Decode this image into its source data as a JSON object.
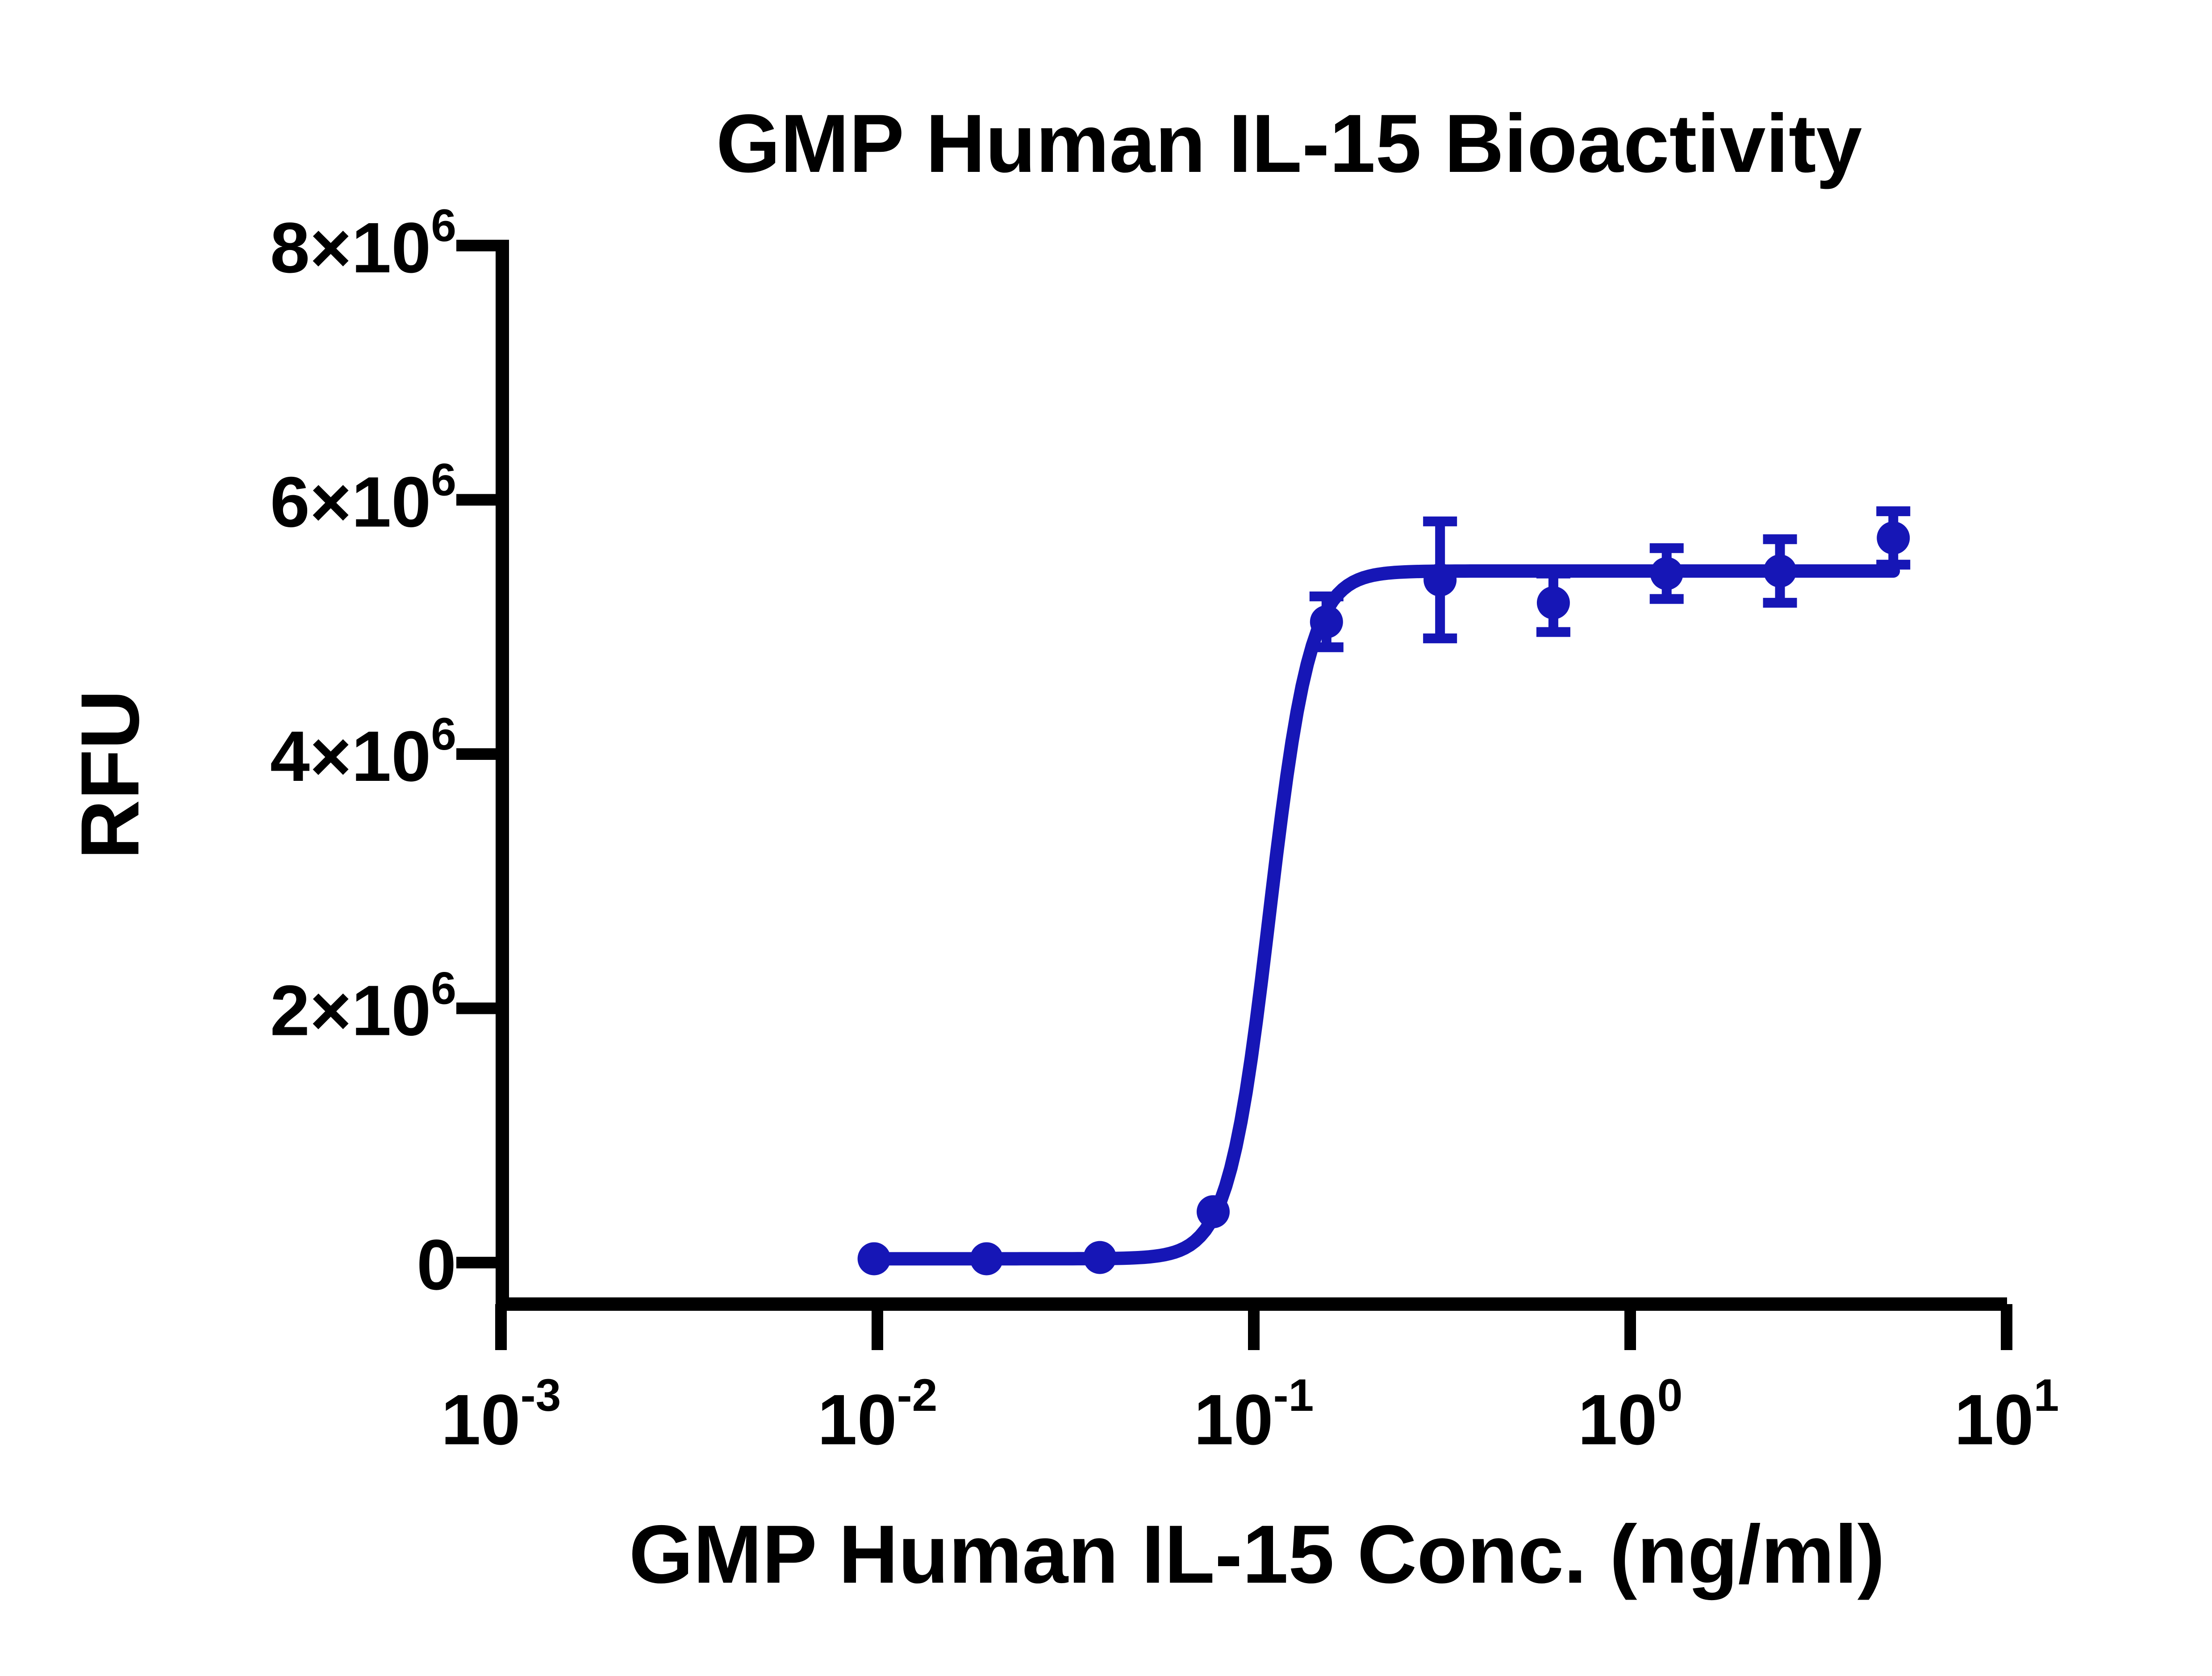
{
  "figure": {
    "background": "#ffffff",
    "axis_color": "#000000",
    "series_color": "#1616b6"
  },
  "chart_data": {
    "type": "scatter",
    "subtype": "dose-response with 4PL fit and SD error bars",
    "title": "GMP Human IL-15 Bioactivity",
    "xlabel": "GMP Human IL-15 Conc. (ng/ml)",
    "ylabel": "RFU",
    "x_scale": "log10",
    "y_scale": "linear",
    "xlim": [
      0.001,
      10
    ],
    "ylim": [
      0,
      8000000
    ],
    "grid": "off",
    "legend": "none",
    "x_ticks": [
      {
        "text": "10",
        "sup": "-3",
        "value": 0.001
      },
      {
        "text": "10",
        "sup": "-2",
        "value": 0.01
      },
      {
        "text": "10",
        "sup": "-1",
        "value": 0.1
      },
      {
        "text": "10",
        "sup": "0",
        "value": 1
      },
      {
        "text": "10",
        "sup": "1",
        "value": 10
      }
    ],
    "y_ticks": [
      {
        "text": "0",
        "sup": "",
        "value": 0
      },
      {
        "text": "2×10",
        "sup": "6",
        "value": 2000000
      },
      {
        "text": "4×10",
        "sup": "6",
        "value": 4000000
      },
      {
        "text": "6×10",
        "sup": "6",
        "value": 6000000
      },
      {
        "text": "8×10",
        "sup": "6",
        "value": 8000000
      }
    ],
    "points": [
      {
        "conc": 0.0098,
        "rfu": 30000,
        "err": 0
      },
      {
        "conc": 0.0195,
        "rfu": 30000,
        "err": 0
      },
      {
        "conc": 0.039,
        "rfu": 40000,
        "err": 0
      },
      {
        "conc": 0.078,
        "rfu": 400000,
        "err": 0
      },
      {
        "conc": 0.156,
        "rfu": 5040000,
        "err": 200000
      },
      {
        "conc": 0.3125,
        "rfu": 5370000,
        "err": 460000
      },
      {
        "conc": 0.625,
        "rfu": 5190000,
        "err": 230000
      },
      {
        "conc": 1.25,
        "rfu": 5420000,
        "err": 200000
      },
      {
        "conc": 2.5,
        "rfu": 5440000,
        "err": 250000
      },
      {
        "conc": 5,
        "rfu": 5700000,
        "err": 210000
      }
    ],
    "fit": {
      "model": "4PL",
      "bottom": 30000,
      "top": 5440000,
      "ec50": 0.11,
      "hill": 8,
      "draw_range": [
        0.0098,
        5
      ]
    }
  }
}
